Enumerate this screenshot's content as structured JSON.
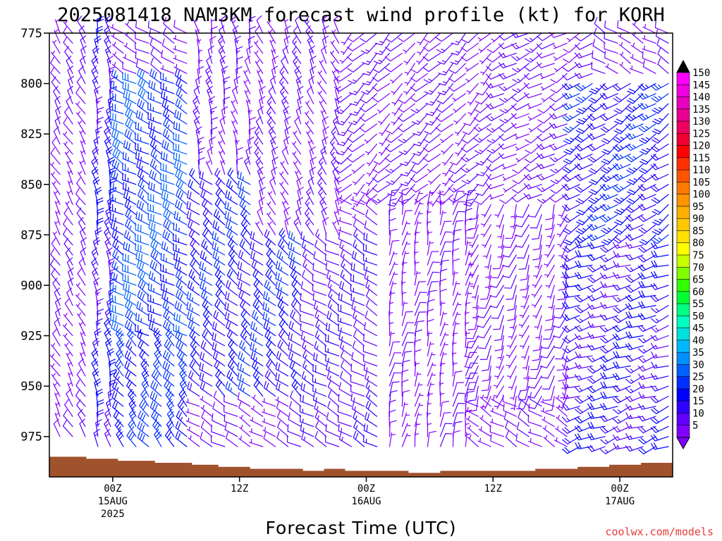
{
  "chart_data": {
    "type": "wind-barb",
    "title": "2025081418 NAM3KM forecast wind profile (kt) for KORH",
    "xlabel": "Forecast Time (UTC)",
    "credit": "coolwx.com/models",
    "y_ticks": [
      "775",
      "800",
      "825",
      "850",
      "875",
      "900",
      "925",
      "950",
      "975"
    ],
    "x_ticks": [
      {
        "hour": 6,
        "lines": [
          "00Z",
          "15AUG",
          "2025"
        ]
      },
      {
        "hour": 18,
        "lines": [
          "12Z"
        ]
      },
      {
        "hour": 30,
        "lines": [
          "00Z",
          "16AUG"
        ]
      },
      {
        "hour": 42,
        "lines": [
          "12Z"
        ]
      },
      {
        "hour": 54,
        "lines": [
          "00Z",
          "17AUG"
        ]
      }
    ],
    "x_range_hours": [
      0,
      59
    ],
    "y_range_hpa": [
      775,
      995
    ],
    "colorbar": {
      "ticks": [
        "150",
        "145",
        "140",
        "135",
        "130",
        "125",
        "120",
        "115",
        "110",
        "105",
        "100",
        "95",
        "90",
        "85",
        "80",
        "75",
        "70",
        "65",
        "60",
        "55",
        "50",
        "45",
        "40",
        "35",
        "30",
        "25",
        "20",
        "15",
        "10",
        "5"
      ],
      "colors": [
        "#ff00ff",
        "#f000e0",
        "#e800c0",
        "#e80090",
        "#ee0060",
        "#f00030",
        "#ff0000",
        "#ff3000",
        "#ff5500",
        "#ff7a00",
        "#ff9400",
        "#ffb000",
        "#ffc800",
        "#ffe000",
        "#ffff00",
        "#c8ff00",
        "#80ff00",
        "#33ff00",
        "#00ff30",
        "#00ff80",
        "#00ffc0",
        "#00e0e0",
        "#00b8ff",
        "#0090ff",
        "#0060ff",
        "#0030ff",
        "#0000ff",
        "#3000ff",
        "#6000ff",
        "#8000ff"
      ],
      "top_triangle_color": "#000000",
      "bottom_triangle_color": "#8000ff"
    },
    "terrain_color": "#a0522d",
    "surface_pressure_hpa": [
      {
        "hour": 0,
        "p": 985
      },
      {
        "hour": 3.5,
        "p": 986
      },
      {
        "hour": 6.5,
        "p": 987
      },
      {
        "hour": 10,
        "p": 988
      },
      {
        "hour": 13.5,
        "p": 989
      },
      {
        "hour": 16,
        "p": 990
      },
      {
        "hour": 19,
        "p": 991
      },
      {
        "hour": 24,
        "p": 992
      },
      {
        "hour": 26,
        "p": 991
      },
      {
        "hour": 28,
        "p": 992
      },
      {
        "hour": 31,
        "p": 992
      },
      {
        "hour": 34,
        "p": 993
      },
      {
        "hour": 37,
        "p": 992
      },
      {
        "hour": 39,
        "p": 992
      },
      {
        "hour": 41.5,
        "p": 992
      },
      {
        "hour": 46,
        "p": 991
      },
      {
        "hour": 50,
        "p": 990
      },
      {
        "hour": 53,
        "p": 989
      },
      {
        "hour": 56,
        "p": 988
      },
      {
        "hour": 59,
        "p": 987
      }
    ],
    "barb_grid": {
      "hours_start": 1,
      "hours_step": 1.2,
      "hours_count": 49,
      "levels_hpa": [
        775,
        780,
        785,
        790,
        795,
        800,
        805,
        810,
        815,
        820,
        825,
        830,
        835,
        840,
        845,
        850,
        855,
        860,
        865,
        870,
        875,
        880,
        885,
        890,
        895,
        900,
        905,
        910,
        915,
        920,
        925,
        930,
        935,
        940,
        945,
        950,
        955,
        960,
        965,
        970,
        975,
        980
      ]
    },
    "wind_regimes": [
      {
        "h0": 0,
        "h1": 4,
        "p0": 775,
        "p1": 990,
        "dir": 330,
        "spd": 8
      },
      {
        "h0": 4,
        "h1": 7,
        "p0": 775,
        "p1": 990,
        "dir": 345,
        "spd": 18
      },
      {
        "h0": 7,
        "h1": 14,
        "p0": 800,
        "p1": 930,
        "dir": 300,
        "spd": 28
      },
      {
        "h0": 7,
        "h1": 14,
        "p0": 930,
        "p1": 990,
        "dir": 320,
        "spd": 26
      },
      {
        "h0": 14,
        "h1": 24,
        "p0": 850,
        "p1": 960,
        "dir": 310,
        "spd": 22
      },
      {
        "h0": 14,
        "h1": 20,
        "p0": 775,
        "p1": 850,
        "dir": 345,
        "spd": 10
      },
      {
        "h0": 20,
        "h1": 28,
        "p0": 775,
        "p1": 880,
        "dir": 335,
        "spd": 10
      },
      {
        "h0": 24,
        "h1": 32,
        "p0": 880,
        "p1": 990,
        "dir": 300,
        "spd": 14
      },
      {
        "h0": 28,
        "h1": 42,
        "p0": 775,
        "p1": 860,
        "dir": 225,
        "spd": 10
      },
      {
        "h0": 32,
        "h1": 40,
        "p0": 860,
        "p1": 990,
        "dir": 10,
        "spd": 7
      },
      {
        "h0": 40,
        "h1": 50,
        "p0": 860,
        "p1": 960,
        "dir": 200,
        "spd": 8
      },
      {
        "h0": 42,
        "h1": 52,
        "p0": 775,
        "p1": 860,
        "dir": 240,
        "spd": 11
      },
      {
        "h0": 50,
        "h1": 59,
        "p0": 800,
        "p1": 880,
        "dir": 235,
        "spd": 22
      },
      {
        "h0": 50,
        "h1": 59,
        "p0": 880,
        "p1": 990,
        "dir": 250,
        "spd": 18
      }
    ]
  }
}
